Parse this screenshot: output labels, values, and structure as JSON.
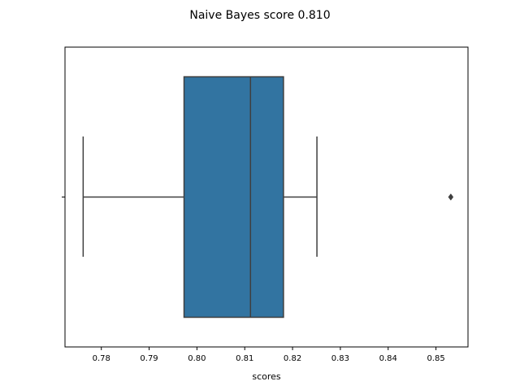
{
  "chart_data": {
    "type": "box",
    "title": "Naive Bayes score 0.810",
    "xlabel": "scores",
    "ylabel": "",
    "orientation": "horizontal",
    "xlim": [
      0.7724,
      0.8567
    ],
    "xticks": [
      0.78,
      0.79,
      0.8,
      0.81,
      0.82,
      0.83,
      0.84,
      0.85
    ],
    "xtick_labels": [
      "0.78",
      "0.79",
      "0.80",
      "0.81",
      "0.82",
      "0.83",
      "0.84",
      "0.85"
    ],
    "grid": false,
    "box": {
      "whisker_low": 0.7762,
      "q1": 0.7973,
      "median": 0.8112,
      "q3": 0.8181,
      "whisker_high": 0.8251,
      "outliers": [
        0.8531
      ],
      "color": "#3274a1",
      "line_color": "#3f3f3f"
    }
  }
}
